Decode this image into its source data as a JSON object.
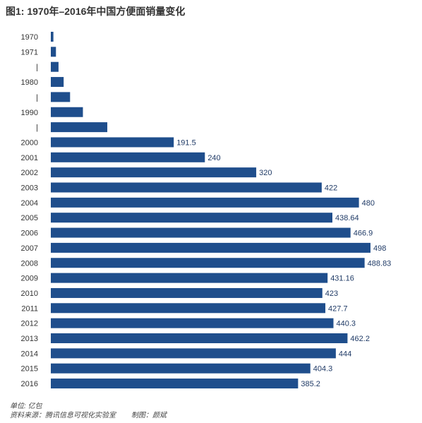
{
  "header": {
    "title": "图1: 1970年–2016年中国方便面销量变化"
  },
  "footer": {
    "unit": "单位: 亿包",
    "source": "资料来源：腾讯信息可视化实验室",
    "maker": "制图：颜斌"
  },
  "colors": {
    "bar": "#1f4e8c",
    "label": "#1f3a66",
    "text": "#333333"
  },
  "chart_data": {
    "type": "bar",
    "orientation": "horizontal",
    "title": "图1: 1970年–2016年中国方便面销量变化",
    "xlabel": "",
    "ylabel": "",
    "unit": "亿包",
    "grid": false,
    "legend": "none",
    "xlim": [
      0,
      500
    ],
    "categories": [
      "1970",
      "1971",
      "|",
      "1980",
      "|",
      "1990",
      "|",
      "2000",
      "2001",
      "2002",
      "2003",
      "2004",
      "2005",
      "2006",
      "2007",
      "2008",
      "2009",
      "2010",
      "2011",
      "2012",
      "2013",
      "2014",
      "2015",
      "2016"
    ],
    "values": [
      4,
      8,
      12,
      20,
      30,
      50,
      88,
      191.5,
      240,
      320,
      422,
      480,
      438.64,
      466.9,
      498,
      488.83,
      431.16,
      423,
      427.7,
      440.3,
      462.2,
      444,
      404.3,
      385.2
    ],
    "data_labels": [
      "",
      "",
      "",
      "",
      "",
      "",
      "",
      "191.5",
      "240",
      "320",
      "422",
      "480",
      "438.64",
      "466.9",
      "498",
      "488.83",
      "431.16",
      "423",
      "427.7",
      "440.3",
      "462.2",
      "444",
      "404.3",
      "385.2"
    ]
  }
}
